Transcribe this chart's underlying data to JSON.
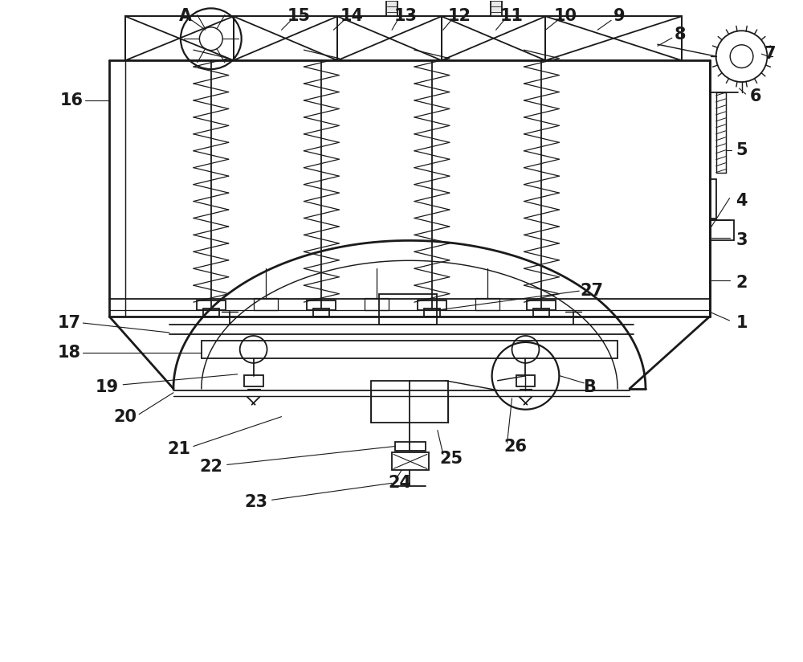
{
  "bg_color": "#ffffff",
  "lc": "#1a1a1a",
  "lw": 1.3,
  "tlw": 2.0,
  "fig_w": 10.0,
  "fig_h": 8.24,
  "dpi": 100,
  "xlim": [
    0,
    10
  ],
  "ylim": [
    0,
    8.24
  ]
}
